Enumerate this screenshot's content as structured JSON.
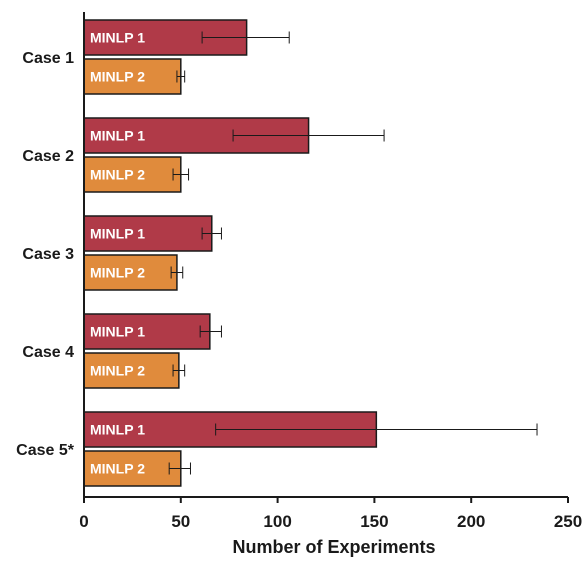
{
  "chart_data": {
    "type": "bar",
    "orientation": "horizontal",
    "categories": [
      "Case 1",
      "Case 2",
      "Case 3",
      "Case 4",
      "Case 5*"
    ],
    "series": [
      {
        "name": "MINLP 1",
        "color": "#b03a48",
        "values": [
          84,
          116,
          66,
          65,
          151
        ],
        "error_low": [
          61,
          77,
          61,
          60,
          68
        ],
        "error_high": [
          106,
          155,
          71,
          71,
          234
        ]
      },
      {
        "name": "MINLP 2",
        "color": "#e08b3c",
        "values": [
          50,
          50,
          48,
          49,
          50
        ],
        "error_low": [
          48,
          46,
          45,
          46,
          44
        ],
        "error_high": [
          52,
          54,
          51,
          52,
          55
        ]
      }
    ],
    "xlabel": "Number of Experiments",
    "ylabel": "",
    "xlim": [
      0,
      250
    ],
    "xticks": [
      0,
      50,
      100,
      150,
      200,
      250
    ],
    "grid": false,
    "legend": "none"
  }
}
